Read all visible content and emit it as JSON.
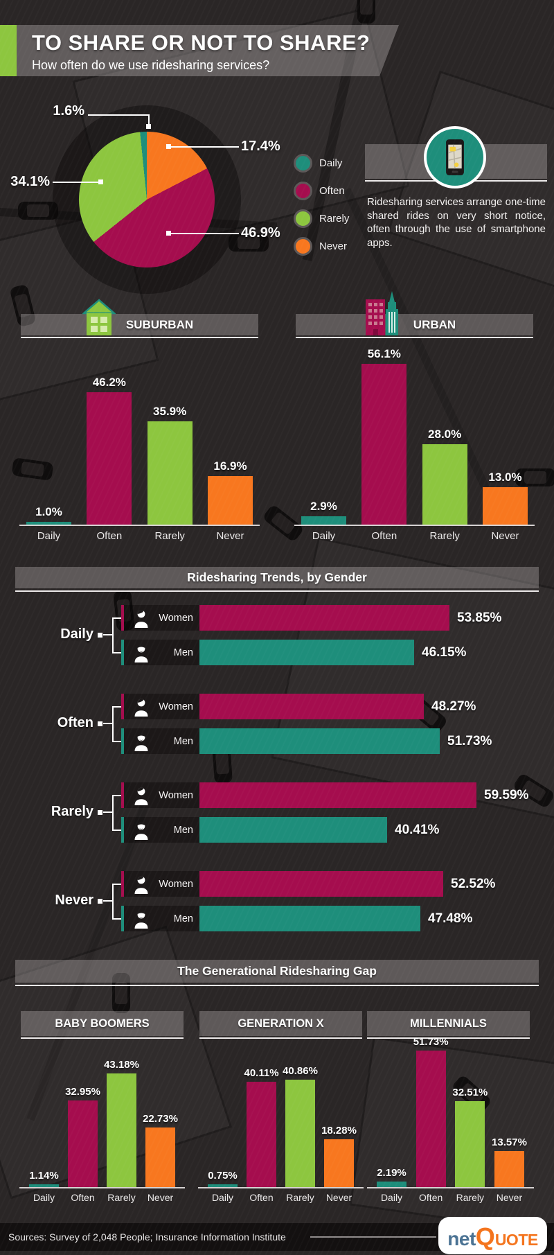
{
  "header": {
    "title": "TO SHARE OR NOT TO SHARE?",
    "subtitle": "How often do we use ridesharing services?"
  },
  "pie_callouts": {
    "daily": "1.6%",
    "often": "46.9%",
    "rarely": "34.1%",
    "never": "17.4%"
  },
  "legend": {
    "items": [
      "Daily",
      "Often",
      "Rarely",
      "Never"
    ]
  },
  "info_box": {
    "text": "Ridesharing services arrange one-time shared rides on very short notice, often through the use of smartphone apps."
  },
  "sections": {
    "gender": "Ridesharing Trends, by Gender",
    "generations": "The Generational Ridesharing Gap"
  },
  "colors": {
    "categories": {
      "Daily": "#1E8E7B",
      "Often": "#A50D4E",
      "Rarely": "#8DC63F",
      "Never": "#F8771F"
    },
    "gender": {
      "Women": "#A50D4E",
      "Men": "#1E8E7B"
    },
    "accent_green": "#8DC63F",
    "banner_gray": "rgba(214,208,208,0.30)",
    "logo_net_blue": "#4A7293",
    "logo_orange": "#F4741D"
  },
  "chart_data": [
    {
      "type": "pie",
      "title": "How often do we use ridesharing services?",
      "categories": [
        "Daily",
        "Often",
        "Rarely",
        "Never"
      ],
      "values": [
        1.6,
        46.9,
        34.1,
        17.4
      ],
      "values_display": [
        "1.6%",
        "46.9%",
        "34.1%",
        "17.4%"
      ],
      "draw_order_clockwise_from_top": [
        "Never",
        "Often",
        "Rarely",
        "Daily"
      ],
      "legend_position": "right"
    },
    {
      "type": "bar",
      "title": "SUBURBAN",
      "categories": [
        "Daily",
        "Often",
        "Rarely",
        "Never"
      ],
      "values": [
        1.0,
        46.2,
        35.9,
        16.9
      ],
      "values_display": [
        "1.0%",
        "46.2%",
        "35.9%",
        "16.9%"
      ]
    },
    {
      "type": "bar",
      "title": "URBAN",
      "categories": [
        "Daily",
        "Often",
        "Rarely",
        "Never"
      ],
      "values": [
        2.9,
        56.1,
        28.0,
        13.0
      ],
      "values_display": [
        "2.9%",
        "56.1%",
        "28.0%",
        "13.0%"
      ]
    },
    {
      "type": "bar-horizontal-grouped",
      "title": "Ridesharing Trends, by Gender",
      "groups": [
        {
          "label": "Daily",
          "bars": [
            {
              "name": "Women",
              "value": 53.85,
              "display": "53.85%"
            },
            {
              "name": "Men",
              "value": 46.15,
              "display": "46.15%"
            }
          ]
        },
        {
          "label": "Often",
          "bars": [
            {
              "name": "Women",
              "value": 48.27,
              "display": "48.27%"
            },
            {
              "name": "Men",
              "value": 51.73,
              "display": "51.73%"
            }
          ]
        },
        {
          "label": "Rarely",
          "bars": [
            {
              "name": "Women",
              "value": 59.59,
              "display": "59.59%"
            },
            {
              "name": "Men",
              "value": 40.41,
              "display": "40.41%"
            }
          ]
        },
        {
          "label": "Never",
          "bars": [
            {
              "name": "Women",
              "value": 52.52,
              "display": "52.52%"
            },
            {
              "name": "Men",
              "value": 47.48,
              "display": "47.48%"
            }
          ]
        }
      ]
    },
    {
      "type": "bar",
      "title": "BABY BOOMERS",
      "categories": [
        "Daily",
        "Often",
        "Rarely",
        "Never"
      ],
      "values": [
        1.14,
        32.95,
        43.18,
        22.73
      ],
      "values_display": [
        "1.14%",
        "32.95%",
        "43.18%",
        "22.73%"
      ]
    },
    {
      "type": "bar",
      "title": "GENERATION X",
      "categories": [
        "Daily",
        "Often",
        "Rarely",
        "Never"
      ],
      "values": [
        0.75,
        40.11,
        40.86,
        18.28
      ],
      "values_display": [
        "0.75%",
        "40.11%",
        "40.86%",
        "18.28%"
      ]
    },
    {
      "type": "bar",
      "title": "MILLENNIALS",
      "categories": [
        "Daily",
        "Often",
        "Rarely",
        "Never"
      ],
      "values": [
        2.19,
        51.73,
        32.51,
        13.57
      ],
      "values_display": [
        "2.19%",
        "51.73%",
        "32.51%",
        "13.57%"
      ]
    }
  ],
  "footer": {
    "sources": "Sources: Survey of 2,048 People; Insurance Information Institute",
    "logo": {
      "net": "net",
      "q": "Q",
      "uote": "UOTE"
    }
  }
}
